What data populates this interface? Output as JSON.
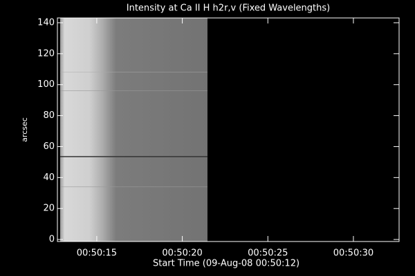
{
  "chart_data": {
    "type": "image",
    "title": "Intensity at Ca II H h2r,v (Fixed Wavelengths)",
    "xlabel": "Start Time (09-Aug-08 00:50:12)",
    "ylabel": "arcsec",
    "image_xrange": [
      12.86,
      21.47
    ],
    "xlim": [
      12.7,
      32.67
    ],
    "ylim": [
      -1.3,
      143.1
    ],
    "xticks": [
      {
        "value": 15,
        "label": "00:50:15"
      },
      {
        "value": 20,
        "label": "00:50:20"
      },
      {
        "value": 25,
        "label": "00:50:25"
      },
      {
        "value": 30,
        "label": "00:50:30"
      }
    ],
    "yticks": [
      0,
      20,
      40,
      60,
      80,
      100,
      120,
      140
    ]
  }
}
